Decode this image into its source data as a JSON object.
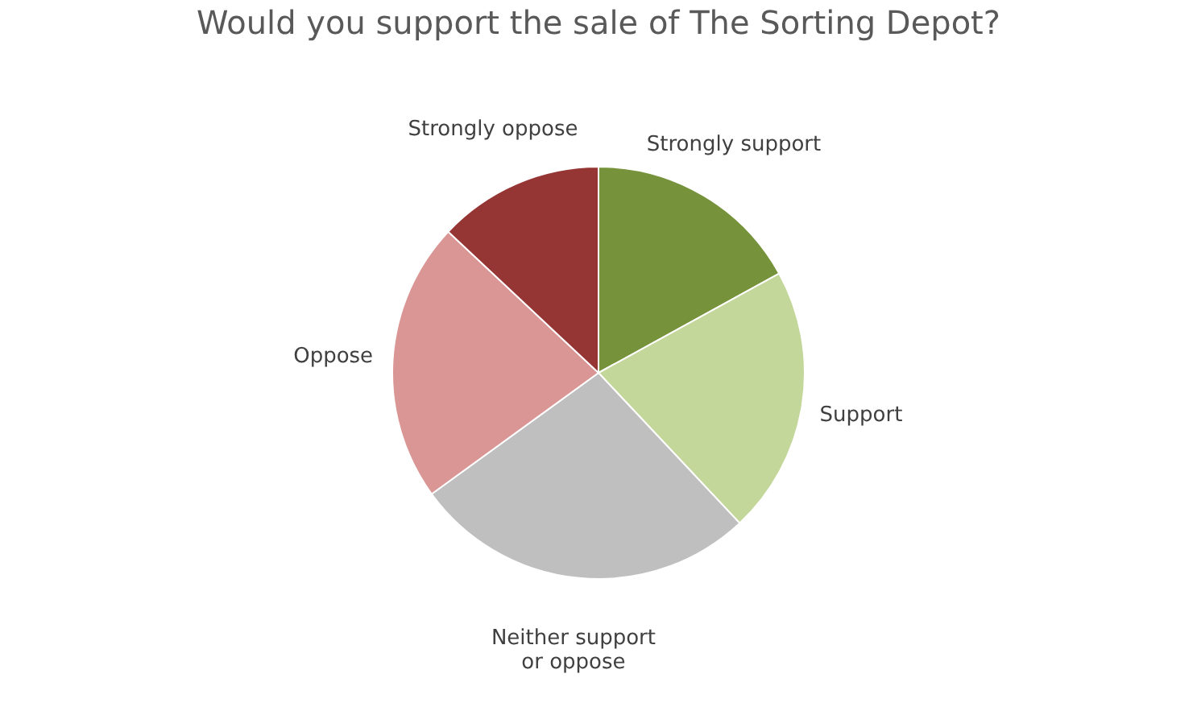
{
  "chart_data": {
    "type": "pie",
    "title": "Would you support the sale of The Sorting Depot?",
    "categories": [
      "Strongly support",
      "Support",
      "Neither support or oppose",
      "Oppose",
      "Strongly oppose"
    ],
    "values": [
      17,
      21,
      27,
      22,
      13
    ],
    "colors": [
      "#76933c",
      "#c4d79b",
      "#bfbfbf",
      "#da9694",
      "#963634"
    ],
    "legend": false
  }
}
